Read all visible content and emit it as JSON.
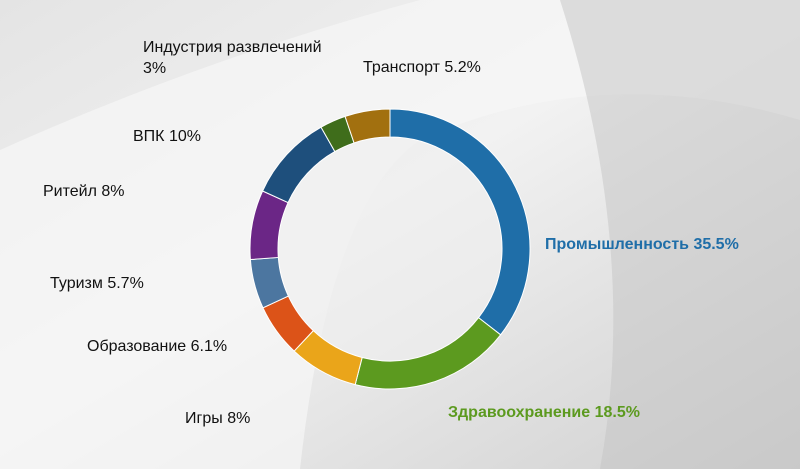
{
  "chart_data": {
    "type": "donut",
    "categories": [
      "Промышленность",
      "Здравоохранение",
      "Игры",
      "Образование",
      "Туризм",
      "Ритейл",
      "ВПК",
      "Индустрия развлечений",
      "Транспорт"
    ],
    "values": [
      35.5,
      18.5,
      8,
      6.1,
      5.7,
      8,
      10,
      3,
      5.2
    ],
    "value_labels": [
      "35.5%",
      "18.5%",
      "8%",
      "6.1%",
      "5.7%",
      "8%",
      "10%",
      "3%",
      "5.2%"
    ],
    "colors": [
      "#1f6ea8",
      "#5c9a1f",
      "#eaa51a",
      "#dc5318",
      "#4c76a0",
      "#6b2686",
      "#1e4f7c",
      "#3f6d1b",
      "#a2700f"
    ]
  }
}
